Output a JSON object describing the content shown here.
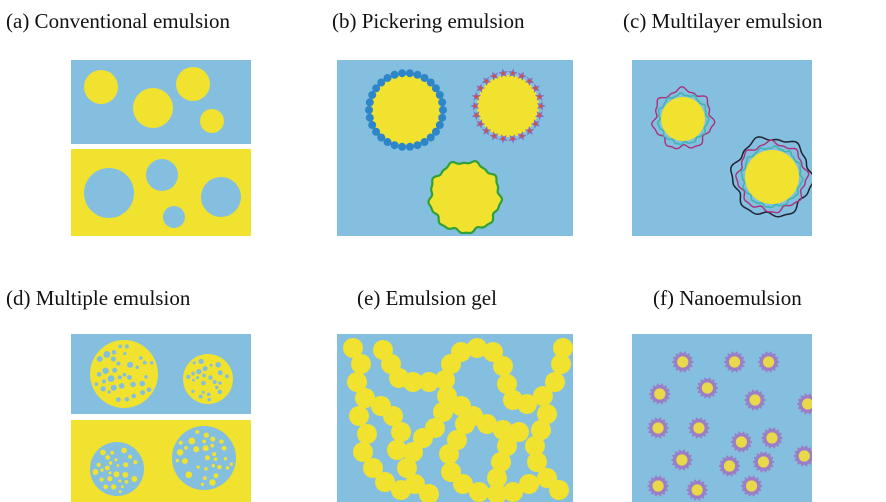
{
  "figure": {
    "colors": {
      "water": "#84BFE0",
      "oil": "#F0E22E",
      "particle_blue": "#2E86C8",
      "star_particle": "#8C6FB8",
      "star_core": "#E04A2A",
      "green_layer": "#2FA03A",
      "teal_layer": "#3FB6B0",
      "magenta_layer": "#A8327A",
      "navy_layer": "#1E2430",
      "nano_shell": "#9A7FC6",
      "nano_core": "#E8D84A"
    },
    "panels": [
      {
        "id": "a",
        "label": "(a) Conventional emulsion"
      },
      {
        "id": "b",
        "label": "(b) Pickering emulsion"
      },
      {
        "id": "c",
        "label": "(c) Multilayer emulsion"
      },
      {
        "id": "d",
        "label": "(d) Multiple emulsion"
      },
      {
        "id": "e",
        "label": "(e) Emulsion gel"
      },
      {
        "id": "f",
        "label": "(f) Nanoemulsion"
      }
    ]
  }
}
